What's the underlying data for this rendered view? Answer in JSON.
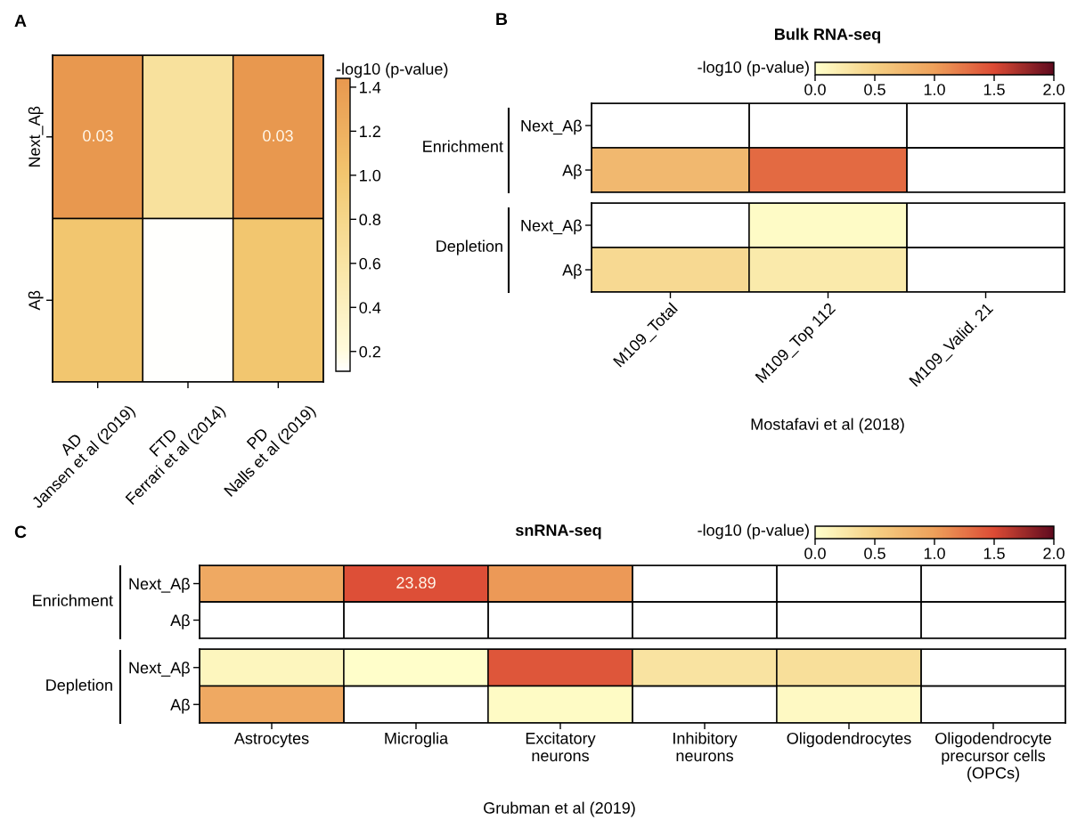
{
  "chart_data": [
    {
      "type": "heatmap",
      "annotations": [
        "A",
        "0.03",
        "0.03"
      ],
      "categories": [
        "AD\nJansen et al (2019)",
        "FTD\nFerrari et al (2014)",
        "PD\nNalls et al (2019)"
      ],
      "y_categories": [
        "Next_Aβ",
        "Aβ"
      ],
      "cells": [
        [
          1.44,
          0.65,
          1.44
        ],
        [
          1.0,
          0.12,
          1.0
        ]
      ],
      "clabel": "-log10 (p-value)",
      "clim": [
        0.11,
        1.44
      ],
      "cticks": [
        0.2,
        0.4,
        0.6,
        0.8,
        {
          "value": 1,
          "label": "1.0"
        },
        1.2,
        1.4
      ]
    },
    {
      "type": "heatmap",
      "title": "Bulk RNA-seq",
      "annotations": [
        "B",
        "Enrichment",
        "Depletion"
      ],
      "xlabel": "Mostafavi et al (2018)",
      "categories": [
        "M109_Total",
        "M109_Top 112",
        "M109_Valid. 21"
      ],
      "y_categories": [
        "Next_Aβ",
        "Aβ",
        "Next_Aβ",
        "Aβ"
      ],
      "cells": [
        [
          null,
          null,
          null
        ],
        [
          0.75,
          1.32,
          null
        ],
        [
          null,
          0.04,
          null
        ],
        [
          0.4,
          0.23,
          null
        ]
      ],
      "clabel": "-log10 (p-value)",
      "clim": [
        0,
        2
      ],
      "cticks": [
        {
          "value": 0,
          "label": "0.0"
        },
        0.5,
        {
          "value": 1,
          "label": "1.0"
        },
        1.5,
        {
          "value": 2,
          "label": "2.0"
        }
      ]
    },
    {
      "type": "heatmap",
      "title": "snRNA-seq",
      "annotations": [
        "C",
        "Enrichment",
        "Depletion",
        "23.89"
      ],
      "xlabel": "Grubman et al (2019)",
      "categories": [
        "Astrocytes",
        "Microglia",
        "Excitatory\nneurons",
        "Inhibitory\nneurons",
        "Oligodendrocytes",
        "Oligodendrocyte\nprecursor cells\n(OPCs)"
      ],
      "y_categories": [
        "Next_Aβ",
        "Aβ",
        "Next_Aβ",
        "Aβ"
      ],
      "cells": [
        [
          0.9,
          1.47,
          1.04,
          null,
          null,
          null
        ],
        [
          null,
          null,
          null,
          null,
          null,
          null
        ],
        [
          0.1,
          0.02,
          1.43,
          0.3,
          0.35,
          null
        ],
        [
          0.9,
          null,
          0.05,
          null,
          0.07,
          null
        ]
      ],
      "clabel": "-log10 (p-value)",
      "clim": [
        0,
        2
      ],
      "cticks": [
        {
          "value": 0,
          "label": "0.0"
        },
        0.5,
        {
          "value": 1,
          "label": "1.0"
        },
        1.5,
        {
          "value": 2,
          "label": "2.0"
        }
      ]
    }
  ]
}
